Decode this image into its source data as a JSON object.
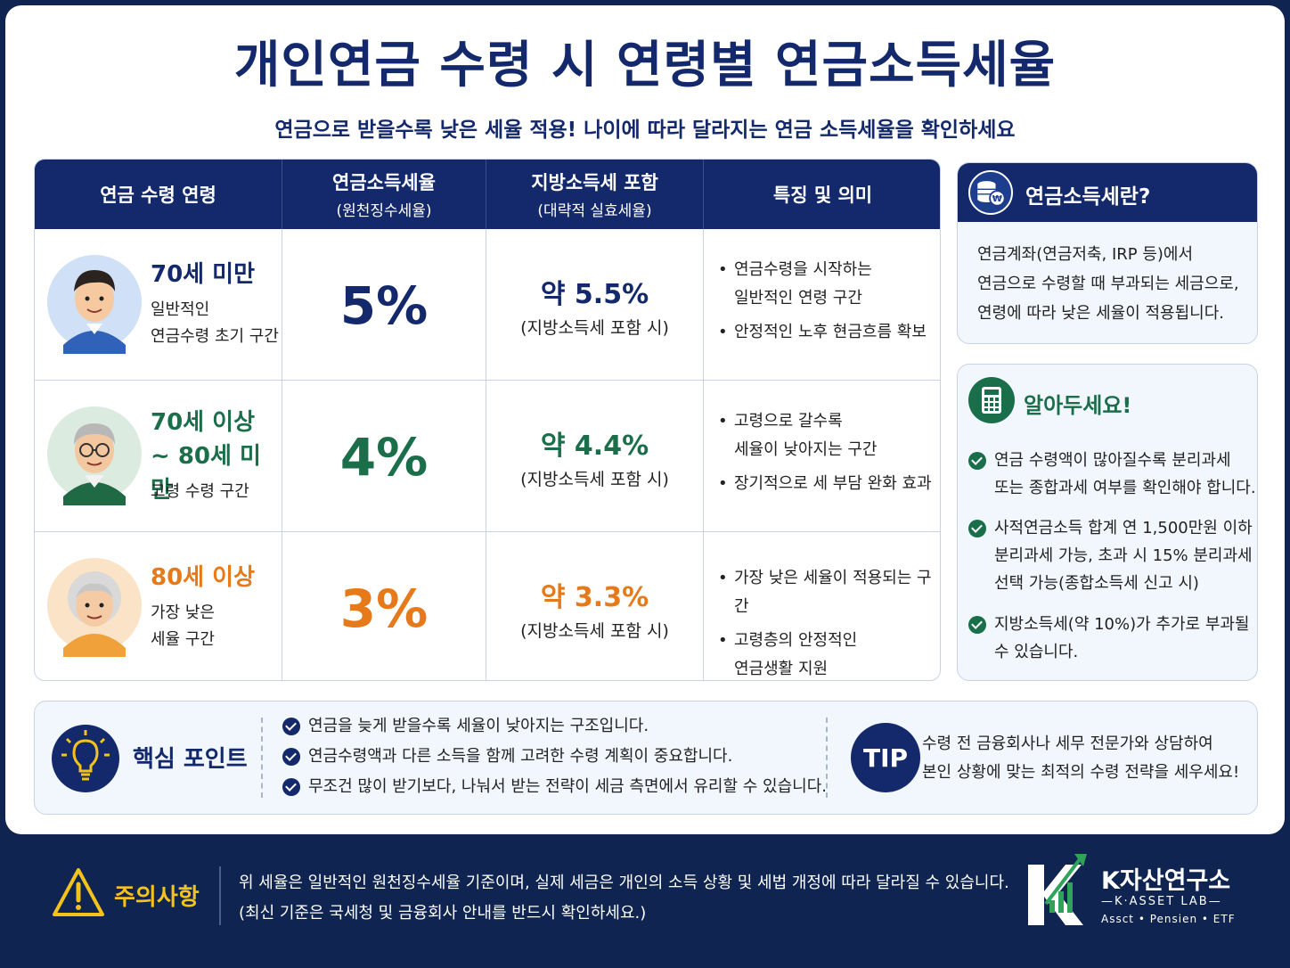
{
  "title": "개인연금 수령 시 연령별 연금소득세율",
  "subtitle": "연금으로 받을수록 낮은 세율 적용! 나이에 따라 달라지는 연금 소득세율을 확인하세요",
  "table": {
    "headers": [
      {
        "label": "연금 수령 연령",
        "sub": ""
      },
      {
        "label": "연금소득세율",
        "sub": "(원천징수세율)"
      },
      {
        "label": "지방소득세 포함",
        "sub": "(대략적 실효세율)"
      },
      {
        "label": "특징 및 의미",
        "sub": ""
      }
    ],
    "rows": [
      {
        "age_title": [
          "70세 미만"
        ],
        "age_desc": [
          "일반적인",
          "연금수령 초기 구간"
        ],
        "rate": "5%",
        "effective": "약 5.5%",
        "effective_note": "(지방소득세 포함 시)",
        "features": [
          [
            "연금수령을 시작하는",
            "일반적인 연령 구간"
          ],
          [
            "안정적인 노후 현금흐름 확보"
          ]
        ],
        "color": "#13296b"
      },
      {
        "age_title": [
          "70세 이상",
          "~ 80세 미만"
        ],
        "age_desc": [
          "고령 수령 구간"
        ],
        "rate": "4%",
        "effective": "약 4.4%",
        "effective_note": "(지방소득세 포함 시)",
        "features": [
          [
            "고령으로 갈수록",
            "세율이 낮아지는 구간"
          ],
          [
            "장기적으로 세 부담 완화 효과"
          ]
        ],
        "color": "#1b6e4a"
      },
      {
        "age_title": [
          "80세 이상"
        ],
        "age_desc": [
          "가장 낮은",
          "세율 구간"
        ],
        "rate": "3%",
        "effective": "약 3.3%",
        "effective_note": "(지방소득세 포함 시)",
        "features": [
          [
            "가장 낮은 세율이 적용되는 구간"
          ],
          [
            "고령층의 안정적인",
            "연금생활 지원"
          ]
        ],
        "color": "#e67a1a"
      }
    ]
  },
  "sidebar": {
    "what": {
      "title": "연금소득세란?",
      "lines": [
        "연금계좌(연금저축, IRP 등)에서",
        "연금으로 수령할 때 부과되는 세금으로,",
        "연령에 따라 낮은 세율이 적용됩니다."
      ]
    },
    "know": {
      "title": "알아두세요!",
      "items": [
        [
          "연금 수령액이 많아질수록 분리과세",
          "또는 종합과세 여부를 확인해야 합니다."
        ],
        [
          "사적연금소득 합계 연 1,500만원 이하",
          "분리과세 가능, 초과 시 15% 분리과세",
          "선택 가능(종합소득세 신고 시)"
        ],
        [
          "지방소득세(약 10%)가 추가로 부과될",
          "수 있습니다."
        ]
      ]
    }
  },
  "core": {
    "title": "핵심 포인트",
    "items": [
      "연금을 늦게 받을수록 세율이 낮아지는 구조입니다.",
      "연금수령액과 다른 소득을 함께 고려한 수령 계획이 중요합니다.",
      "무조건 많이 받기보다, 나눠서 받는 전략이 세금 측면에서 유리할 수 있습니다."
    ],
    "tip_label": "TIP",
    "tip_lines": [
      "수령 전 금융회사나 세무 전문가와 상담하여",
      "본인 상황에 맞는 최적의 수령 전략을 세우세요!"
    ]
  },
  "footer": {
    "warn_title": "주의사항",
    "notes": [
      "위 세율은 일반적인 원천징수세율 기준이며, 실제 세금은 개인의 소득 상황 및 세법 개정에 따라 달라질 수 있습니다.",
      "(최신 기준은 국세청 및 금융회사 안내를 반드시 확인하세요.)"
    ],
    "brand": "K자산연구소",
    "brand_sub": "—K·ASSET LAB—",
    "brand_tags": "Assct • Pensien • ETF"
  },
  "icons": {
    "row1": "young-man-avatar-icon",
    "row2": "older-man-glasses-avatar-icon",
    "row3": "elderly-woman-avatar-icon",
    "what": "coin-stack-won-icon",
    "know": "calculator-icon",
    "core": "lightbulb-icon",
    "warn": "warning-triangle-icon",
    "logo": "k-growth-arrow-logo-icon"
  },
  "colors": {
    "navy": "#13296b",
    "green": "#1b6e4a",
    "orange": "#e67a1a",
    "warning": "#f3c21b"
  }
}
